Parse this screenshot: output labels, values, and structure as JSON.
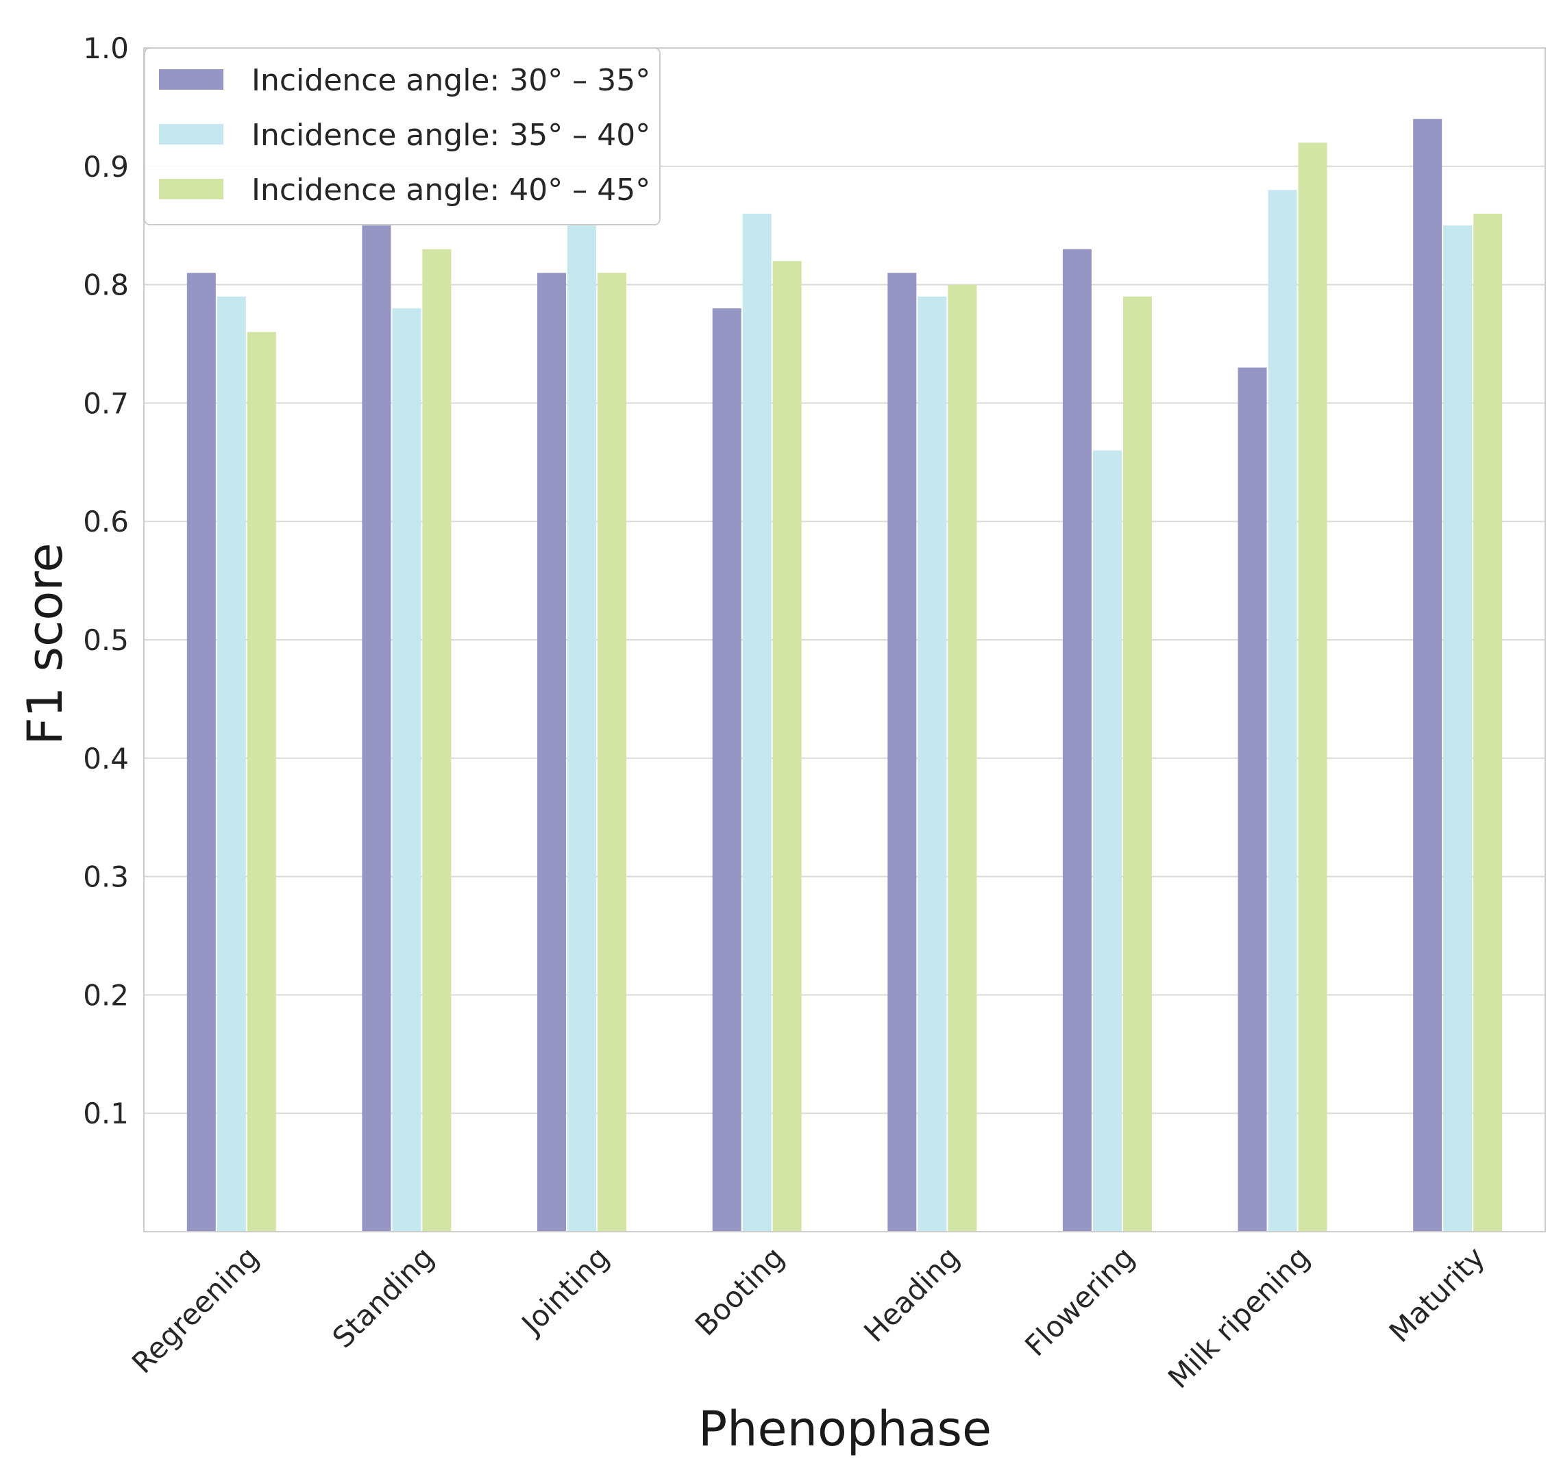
{
  "chart_data": {
    "type": "bar",
    "title": "",
    "xlabel": "Phenophase",
    "ylabel": "F1 score",
    "ylim": [
      0,
      1.0
    ],
    "yticks": [
      "0.1",
      "0.2",
      "0.3",
      "0.4",
      "0.5",
      "0.6",
      "0.7",
      "0.8",
      "0.9",
      "1.0"
    ],
    "ytick_values": [
      0.1,
      0.2,
      0.3,
      0.4,
      0.5,
      0.6,
      0.7,
      0.8,
      0.9,
      1.0
    ],
    "grid": true,
    "legend_position": "top-left",
    "categories": [
      "Regreening",
      "Standing",
      "Jointing",
      "Booting",
      "Heading",
      "Flowering",
      "Milk ripening",
      "Maturity"
    ],
    "series": [
      {
        "name": "Incidence angle: 30° – 35°",
        "color": "#9696c4",
        "values": [
          0.81,
          0.85,
          0.81,
          0.78,
          0.81,
          0.83,
          0.73,
          0.94
        ]
      },
      {
        "name": "Incidence angle: 35° – 40°",
        "color": "#c5e7ee",
        "values": [
          0.79,
          0.78,
          0.85,
          0.86,
          0.79,
          0.66,
          0.88,
          0.85
        ]
      },
      {
        "name": "Incidence angle: 40° – 45°",
        "color": "#d2e5a5",
        "values": [
          0.76,
          0.83,
          0.81,
          0.82,
          0.8,
          0.79,
          0.92,
          0.86
        ]
      }
    ]
  },
  "colors": {
    "background": "#ffffff",
    "grid": "#d9d9d9",
    "frame": "#cccccc",
    "text": "#262626"
  }
}
